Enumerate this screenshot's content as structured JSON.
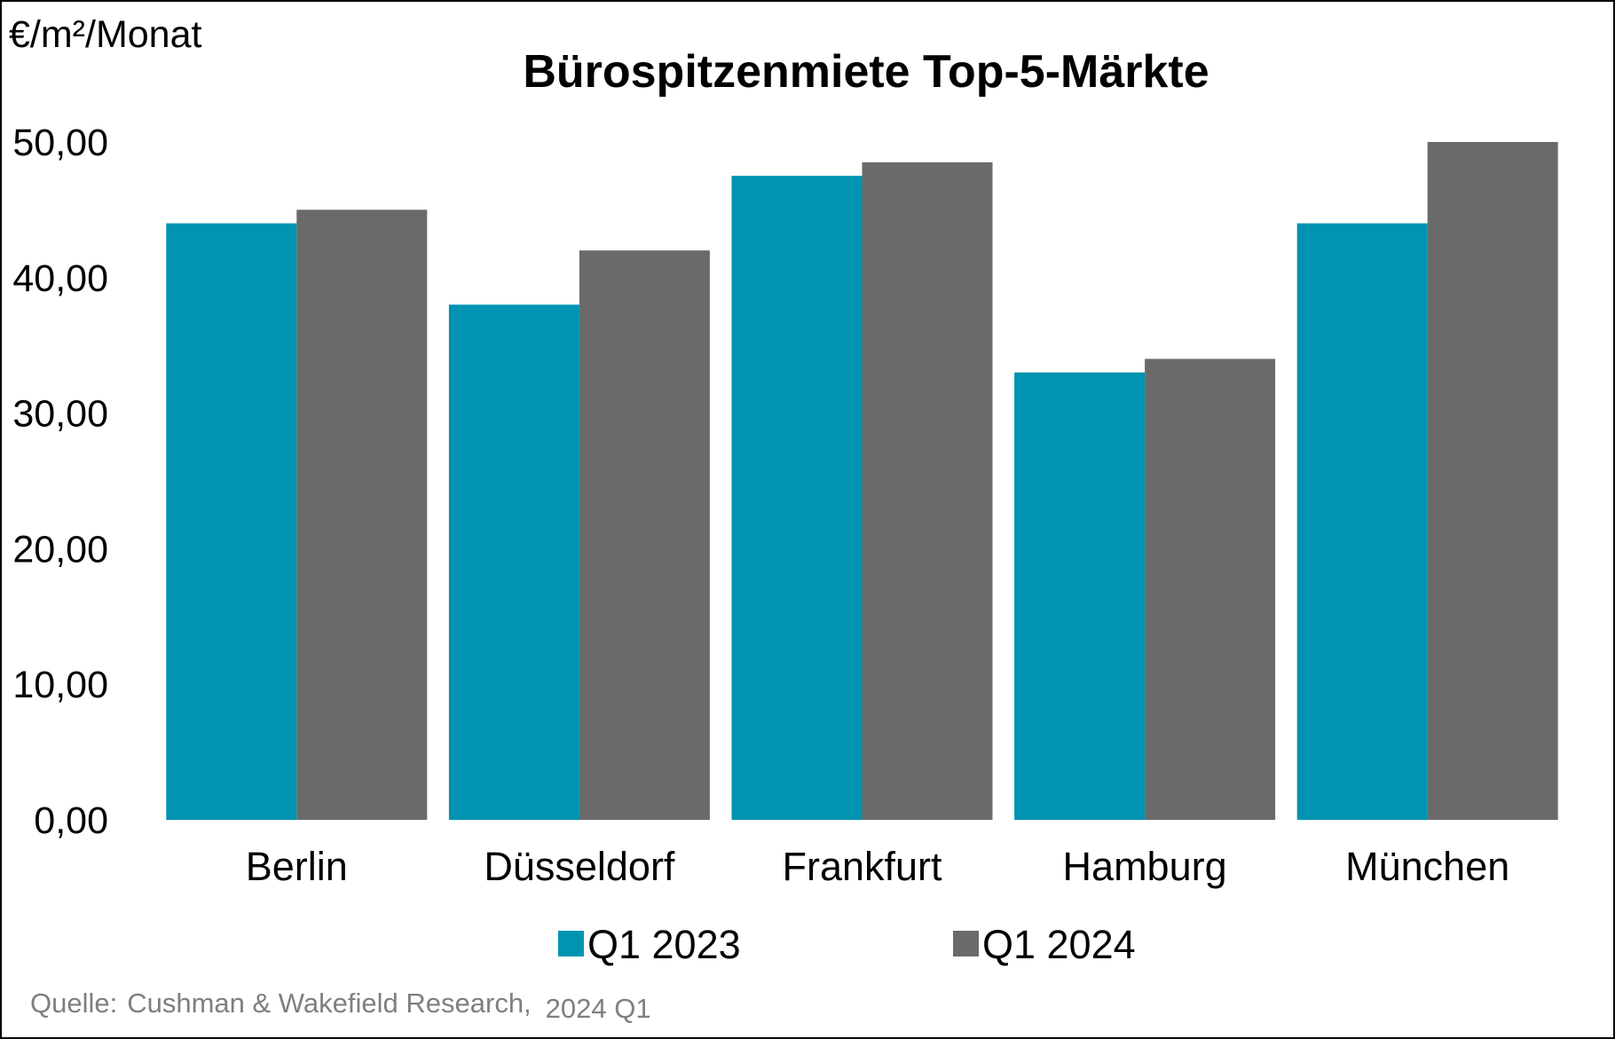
{
  "chart_data": {
    "type": "bar",
    "title": "Bürospitzenmiete Top-5-Märkte",
    "ylabel": "€/m²/Monat",
    "xlabel": "",
    "categories": [
      "Berlin",
      "Düsseldorf",
      "Frankfurt",
      "Hamburg",
      "München"
    ],
    "series": [
      {
        "name": "Q1 2023",
        "color": "#0093B2",
        "values": [
          44.0,
          38.0,
          47.5,
          33.0,
          44.0
        ]
      },
      {
        "name": "Q1 2024",
        "color": "#696A69",
        "values": [
          45.0,
          42.0,
          48.5,
          34.0,
          50.0
        ]
      }
    ],
    "ylim": [
      0,
      50
    ],
    "yticks": [
      "0,00",
      "10,00",
      "20,00",
      "30,00",
      "40,00",
      "50,00"
    ],
    "grid": false,
    "legend": "bottom-center"
  },
  "source": {
    "label": "Quelle:",
    "name": "Cushman & Wakefield Research,",
    "period": "2024 Q1"
  }
}
